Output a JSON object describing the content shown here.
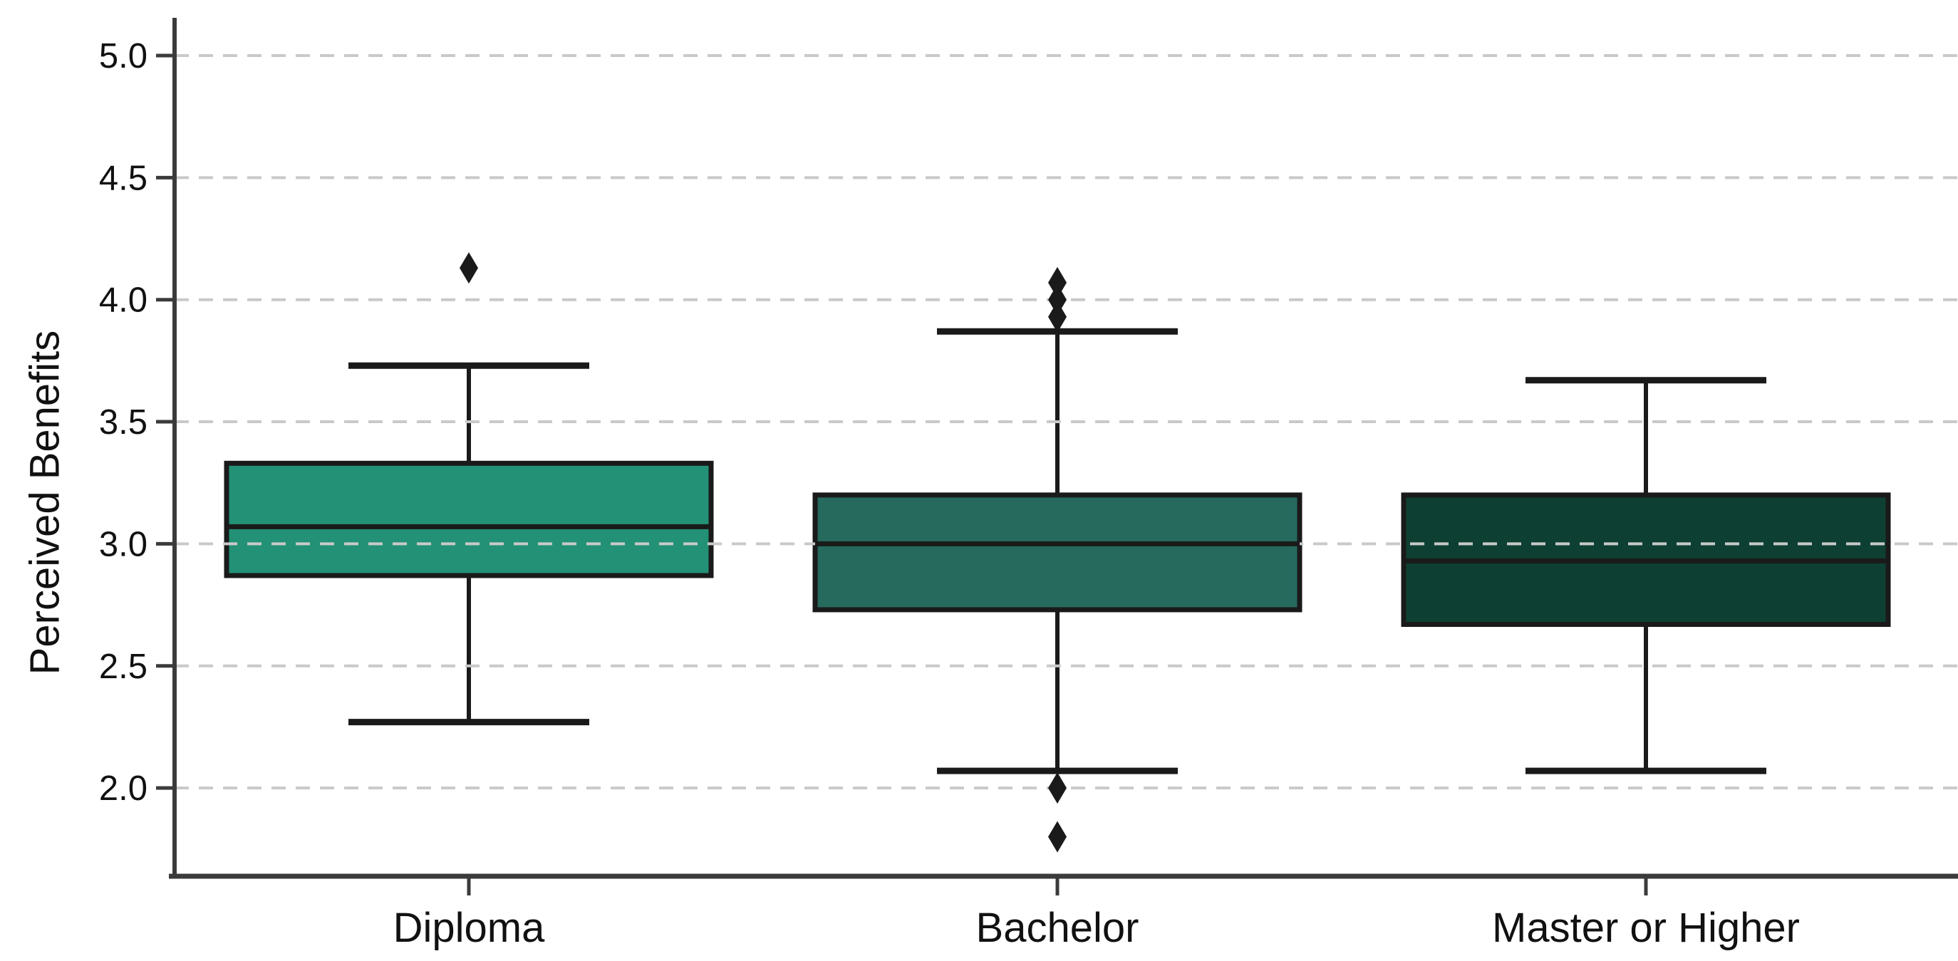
{
  "figure": {
    "background": "#ffffff",
    "text_color": "#111111"
  },
  "chart_data": {
    "type": "boxplot",
    "title": "",
    "xlabel": "",
    "ylabel": "Perceived Benefits",
    "categories": [
      "Diploma",
      "Bachelor",
      "Master or Higher"
    ],
    "yticks": [
      5.0,
      4.5,
      4.0,
      3.5,
      3.0,
      2.5,
      2.0
    ],
    "ytick_labels": [
      "5.0",
      "4.5",
      "4.0",
      "3.5",
      "3.0",
      "2.5",
      "2.0"
    ],
    "ylim": [
      1.64,
      5.16
    ],
    "grid": "horizontal-dashed",
    "gridline_color": "#c9c9c9",
    "legend": "none",
    "outlier_marker": "diamond",
    "line_color": "#1a1a1a",
    "spine_color": "#3b3b3b",
    "series": [
      {
        "name": "Diploma",
        "whisker_low": 2.27,
        "q1": 2.87,
        "median": 3.07,
        "q3": 3.33,
        "whisker_high": 3.73,
        "outliers": [
          4.13
        ],
        "box_color": "#239176"
      },
      {
        "name": "Bachelor",
        "whisker_low": 2.07,
        "q1": 2.73,
        "median": 3.0,
        "q3": 3.2,
        "whisker_high": 3.87,
        "outliers": [
          4.07,
          4.0,
          3.93,
          2.0,
          1.8
        ],
        "box_color": "#266a5e"
      },
      {
        "name": "Master or Higher",
        "whisker_low": 2.07,
        "q1": 2.67,
        "median": 2.93,
        "q3": 3.2,
        "whisker_high": 3.67,
        "outliers": [],
        "box_color": "#0d4032"
      }
    ]
  }
}
